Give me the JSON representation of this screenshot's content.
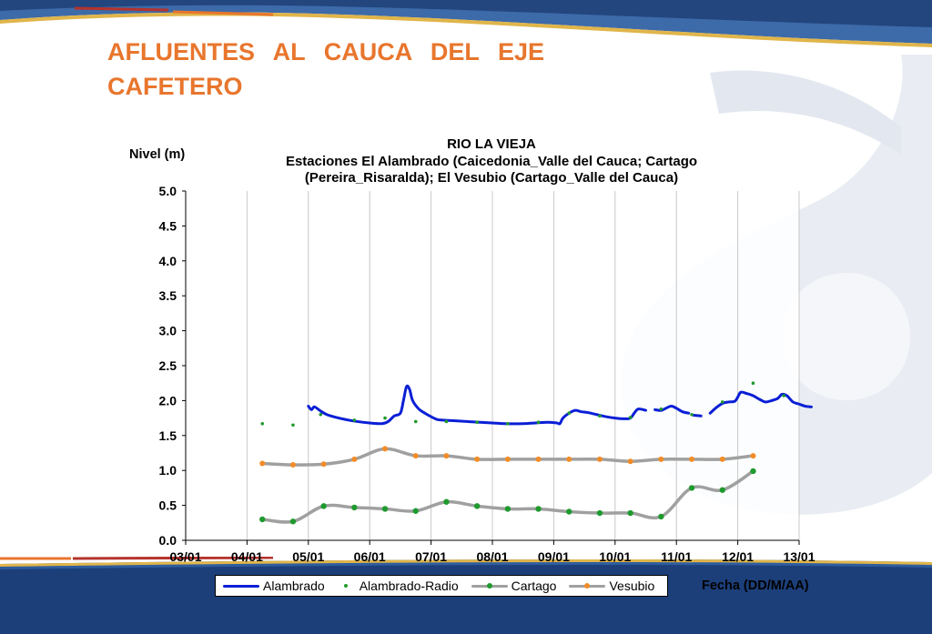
{
  "slide": {
    "title": "AFLUENTES AL CAUCA DEL EJE CAFETERO"
  },
  "colors": {
    "title": "#e8762d",
    "alambrado": "#0a1fd6",
    "alambrado_radio": "#1f9a2e",
    "cartago": "#a0a0a0",
    "cartago_marker": "#1f9a2e",
    "vesubio": "#a0a0a0",
    "vesubio_marker": "#f28c28",
    "band_dark": "#1c3f7a",
    "band_light": "#4f79b8"
  },
  "chart_data": {
    "type": "line",
    "title_lines": [
      "RIO LA VIEJA",
      "Estaciones El Alambrado (Caicedonia_Valle del Cauca; Cartago",
      "(Pereira_Risaralda);  El Vesubio (Cartago_Valle del Cauca)"
    ],
    "ylabel": "Nivel (m)",
    "xlabel": "Fecha (DD/M/AA)",
    "x_ticks": [
      "03/01",
      "04/01",
      "05/01",
      "06/01",
      "07/01",
      "08/01",
      "09/01",
      "10/01",
      "11/01",
      "12/01",
      "13/01"
    ],
    "y_ticks": [
      "0.0",
      "0.5",
      "1.0",
      "1.5",
      "2.0",
      "2.5",
      "3.0",
      "3.5",
      "4.0",
      "4.5",
      "5.0"
    ],
    "ylim": [
      0,
      5
    ],
    "xlim": [
      0,
      10
    ],
    "grid": "vertical",
    "legend_position": "bottom",
    "series": [
      {
        "name": "Alambrado",
        "style": "line",
        "points": [
          [
            2.0,
            1.92
          ],
          [
            2.05,
            1.87
          ],
          [
            2.1,
            1.91
          ],
          [
            2.2,
            1.85
          ],
          [
            2.3,
            1.8
          ],
          [
            2.45,
            1.76
          ],
          [
            2.6,
            1.73
          ],
          [
            2.8,
            1.7
          ],
          [
            3.0,
            1.68
          ],
          [
            3.2,
            1.67
          ],
          [
            3.3,
            1.7
          ],
          [
            3.4,
            1.78
          ],
          [
            3.5,
            1.82
          ],
          [
            3.55,
            2.0
          ],
          [
            3.6,
            2.2
          ],
          [
            3.65,
            2.16
          ],
          [
            3.7,
            2.0
          ],
          [
            3.8,
            1.88
          ],
          [
            3.9,
            1.82
          ],
          [
            4.0,
            1.77
          ],
          [
            4.1,
            1.73
          ],
          [
            4.2,
            1.72
          ],
          [
            4.4,
            1.71
          ],
          [
            4.6,
            1.7
          ],
          [
            4.8,
            1.69
          ],
          [
            5.0,
            1.68
          ],
          [
            5.2,
            1.67
          ],
          [
            5.5,
            1.67
          ],
          [
            5.7,
            1.68
          ],
          [
            5.9,
            1.69
          ],
          [
            6.05,
            1.68
          ],
          [
            6.1,
            1.67
          ],
          [
            6.15,
            1.75
          ],
          [
            6.25,
            1.82
          ],
          [
            6.35,
            1.86
          ],
          [
            6.45,
            1.84
          ],
          [
            6.55,
            1.83
          ],
          [
            6.7,
            1.8
          ],
          [
            6.85,
            1.77
          ],
          [
            7.0,
            1.75
          ],
          [
            7.15,
            1.74
          ],
          [
            7.25,
            1.75
          ],
          [
            7.32,
            1.83
          ],
          [
            7.38,
            1.88
          ],
          [
            7.5,
            1.86
          ]
        ],
        "points_2": [
          [
            7.65,
            1.87
          ],
          [
            7.75,
            1.86
          ],
          [
            7.85,
            1.9
          ],
          [
            7.92,
            1.92
          ],
          [
            8.0,
            1.89
          ],
          [
            8.1,
            1.84
          ],
          [
            8.2,
            1.82
          ]
        ],
        "points_3": [
          [
            8.28,
            1.79
          ],
          [
            8.4,
            1.78
          ]
        ],
        "points_4": [
          [
            8.55,
            1.82
          ],
          [
            8.65,
            1.9
          ],
          [
            8.75,
            1.96
          ],
          [
            8.85,
            1.98
          ],
          [
            8.95,
            1.99
          ],
          [
            9.0,
            2.05
          ],
          [
            9.05,
            2.12
          ],
          [
            9.15,
            2.1
          ],
          [
            9.25,
            2.07
          ],
          [
            9.35,
            2.02
          ],
          [
            9.45,
            1.98
          ],
          [
            9.55,
            2.0
          ],
          [
            9.65,
            2.03
          ],
          [
            9.72,
            2.09
          ],
          [
            9.8,
            2.07
          ],
          [
            9.9,
            1.98
          ],
          [
            10.0,
            1.95
          ],
          [
            10.1,
            1.92
          ],
          [
            10.2,
            1.91
          ]
        ]
      },
      {
        "name": "Alambrado-Radio",
        "style": "points",
        "points": [
          [
            1.25,
            1.67
          ],
          [
            1.75,
            1.65
          ],
          [
            2.2,
            1.8
          ],
          [
            2.75,
            1.72
          ],
          [
            3.25,
            1.75
          ],
          [
            3.75,
            1.7
          ],
          [
            4.25,
            1.7
          ],
          [
            4.75,
            1.69
          ],
          [
            5.25,
            1.67
          ],
          [
            5.75,
            1.69
          ],
          [
            6.25,
            1.82
          ],
          [
            6.75,
            1.78
          ],
          [
            7.25,
            1.76
          ],
          [
            7.75,
            1.88
          ],
          [
            8.25,
            1.8
          ],
          [
            8.75,
            1.98
          ],
          [
            9.25,
            2.25
          ],
          [
            9.75,
            2.07
          ]
        ]
      },
      {
        "name": "Cartago",
        "style": "line-markers",
        "points": [
          [
            1.25,
            0.3
          ],
          [
            1.75,
            0.27
          ],
          [
            2.25,
            0.49
          ],
          [
            2.75,
            0.47
          ],
          [
            3.25,
            0.45
          ],
          [
            3.75,
            0.42
          ],
          [
            4.25,
            0.55
          ],
          [
            4.75,
            0.49
          ],
          [
            5.25,
            0.45
          ],
          [
            5.75,
            0.45
          ],
          [
            6.25,
            0.41
          ],
          [
            6.75,
            0.39
          ],
          [
            7.25,
            0.39
          ],
          [
            7.75,
            0.34
          ],
          [
            8.25,
            0.75
          ],
          [
            8.75,
            0.72
          ],
          [
            9.25,
            0.99
          ]
        ]
      },
      {
        "name": "Vesubio",
        "style": "line-markers",
        "points": [
          [
            1.25,
            1.1
          ],
          [
            1.75,
            1.08
          ],
          [
            2.25,
            1.09
          ],
          [
            2.75,
            1.16
          ],
          [
            3.25,
            1.31
          ],
          [
            3.75,
            1.21
          ],
          [
            4.25,
            1.21
          ],
          [
            4.75,
            1.16
          ],
          [
            5.25,
            1.16
          ],
          [
            5.75,
            1.16
          ],
          [
            6.25,
            1.16
          ],
          [
            6.75,
            1.16
          ],
          [
            7.25,
            1.13
          ],
          [
            7.75,
            1.16
          ],
          [
            8.25,
            1.16
          ],
          [
            8.75,
            1.16
          ],
          [
            9.25,
            1.21
          ]
        ]
      }
    ]
  }
}
